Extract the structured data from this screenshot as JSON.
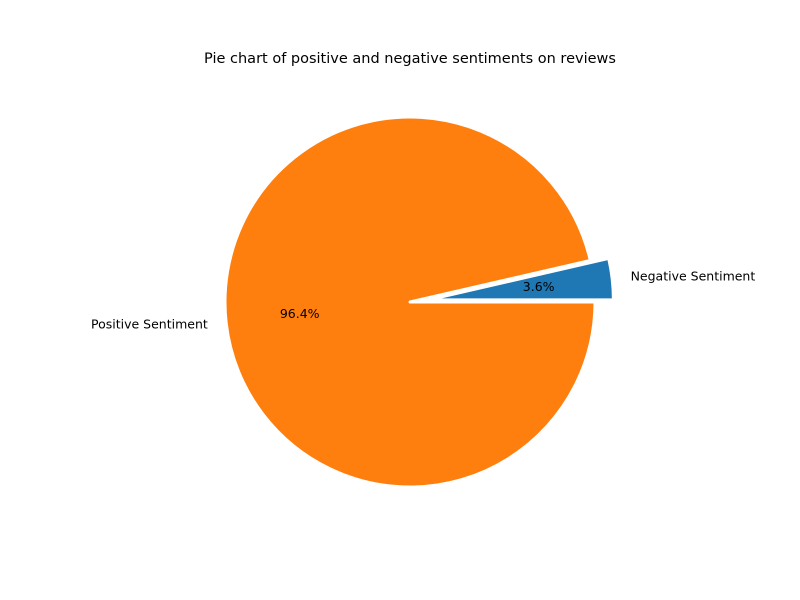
{
  "chart_data": {
    "type": "pie",
    "title": "Pie chart of positive and negative sentiments on reviews",
    "slices": [
      {
        "label": "Negative Sentiment",
        "value": 3.6,
        "pct_label": "3.6%",
        "color": "#1f77b4",
        "exploded": true
      },
      {
        "label": "Positive Sentiment",
        "value": 96.4,
        "pct_label": "96.4%",
        "color": "#ff7f0e",
        "exploded": false
      }
    ]
  }
}
